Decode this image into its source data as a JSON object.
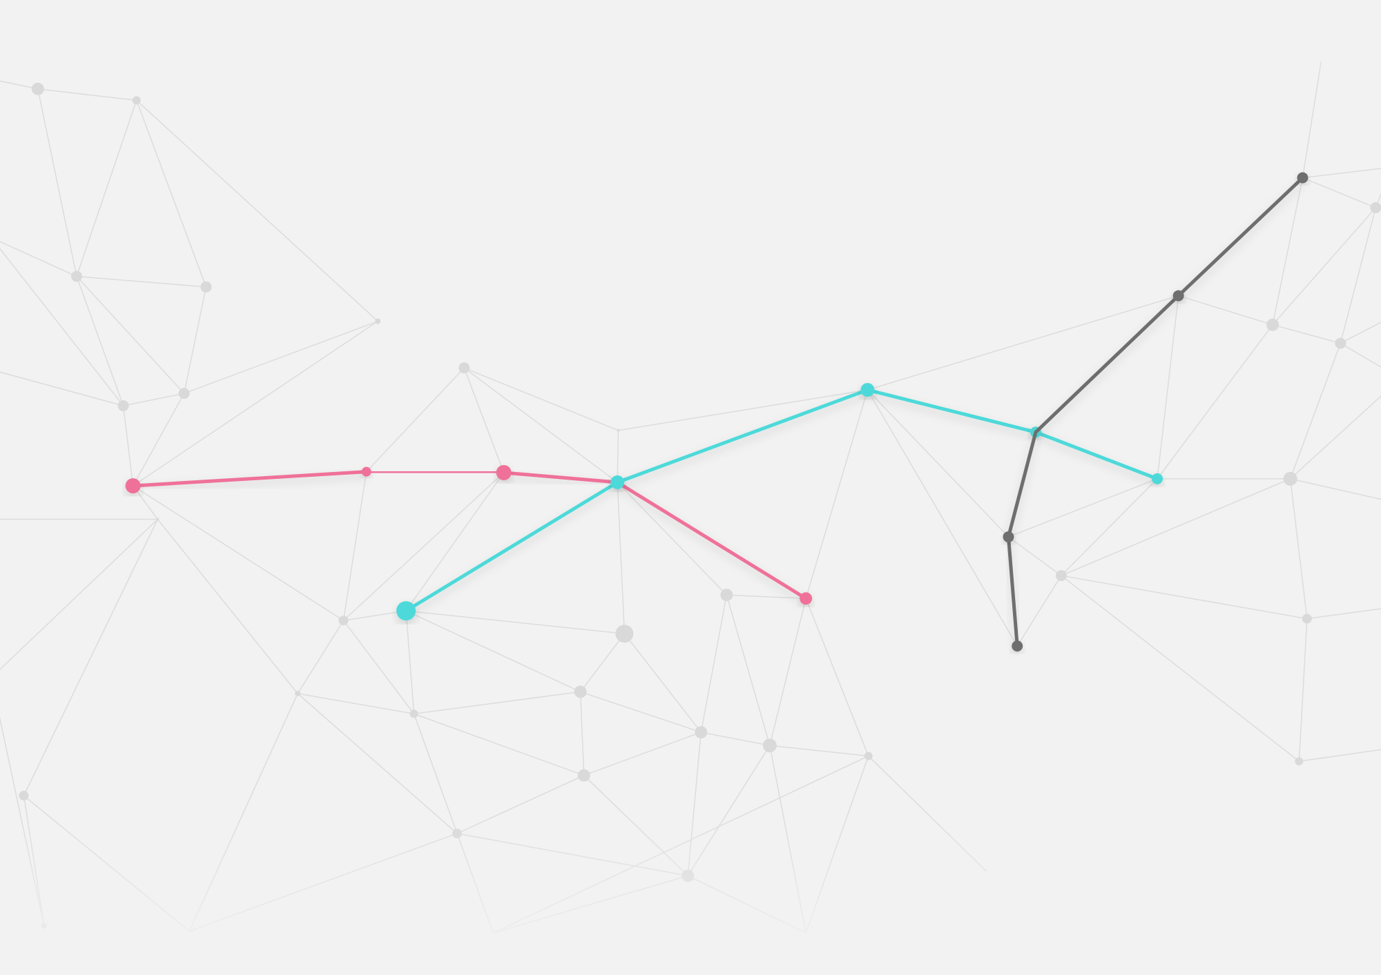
{
  "background_color": "#f2f2f2",
  "grid_color": "#dcdcdc",
  "grid_node_color": "#d9d9d9",
  "highlighted_paths": [
    {
      "name": "pink-path",
      "color": "#ef7199"
    },
    {
      "name": "cyan-path",
      "color": "#4dd9d9"
    },
    {
      "name": "gray-path",
      "color": "#6e6e6e"
    }
  ]
}
